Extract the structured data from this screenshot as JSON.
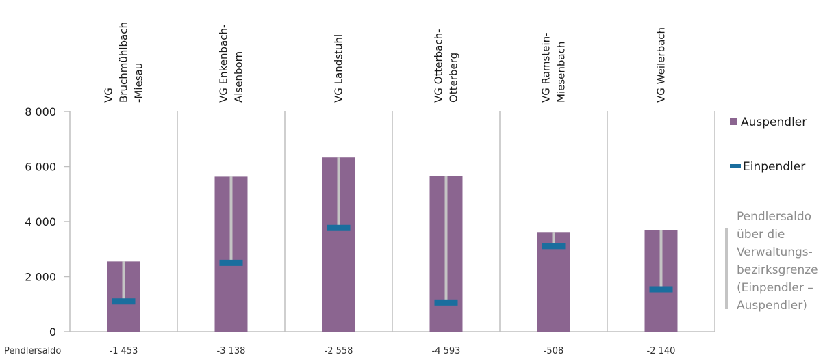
{
  "chart_data": {
    "type": "bar",
    "categories": [
      [
        "VG",
        "Bruchmühlbach",
        "-Miesau"
      ],
      [
        "VG Enkenbach-",
        "Alsenborn"
      ],
      [
        "VG Landstuhl"
      ],
      [
        "VG Otterbach-",
        "Otterberg"
      ],
      [
        "VG Ramstein-",
        "Miesenbach"
      ],
      [
        "VG Weilerbach"
      ]
    ],
    "series": [
      {
        "name": "Auspendler",
        "marker": "bar",
        "values": [
          2550,
          5630,
          6330,
          5650,
          3620,
          3680
        ]
      },
      {
        "name": "Einpendler",
        "marker": "dash",
        "values": [
          1100,
          2500,
          3770,
          1060,
          3110,
          1540
        ]
      }
    ],
    "ylim": [
      0,
      8000
    ],
    "yticks": [
      0,
      2000,
      4000,
      6000,
      8000
    ],
    "ytick_labels": [
      "0",
      "2 000",
      "4 000",
      "6 000",
      "8 000"
    ],
    "saldo_label": "Pendlersaldo",
    "saldo_values": [
      "-1 453",
      "-3 138",
      "-2 558",
      "-4 593",
      "-508",
      "-2 140"
    ],
    "saldo_note": [
      "Pendlersaldo",
      "über die",
      "Verwaltungs-",
      "bezirksgrenze",
      "(Einpendler –",
      "Auspendler)"
    ],
    "legend_position": "right",
    "grid": false
  },
  "colors": {
    "bar": "#8b6590",
    "marker": "#1a6e9e",
    "connector": "#c4c4c4",
    "axis": "#bfbfbf",
    "note": "#8c8c8c"
  }
}
